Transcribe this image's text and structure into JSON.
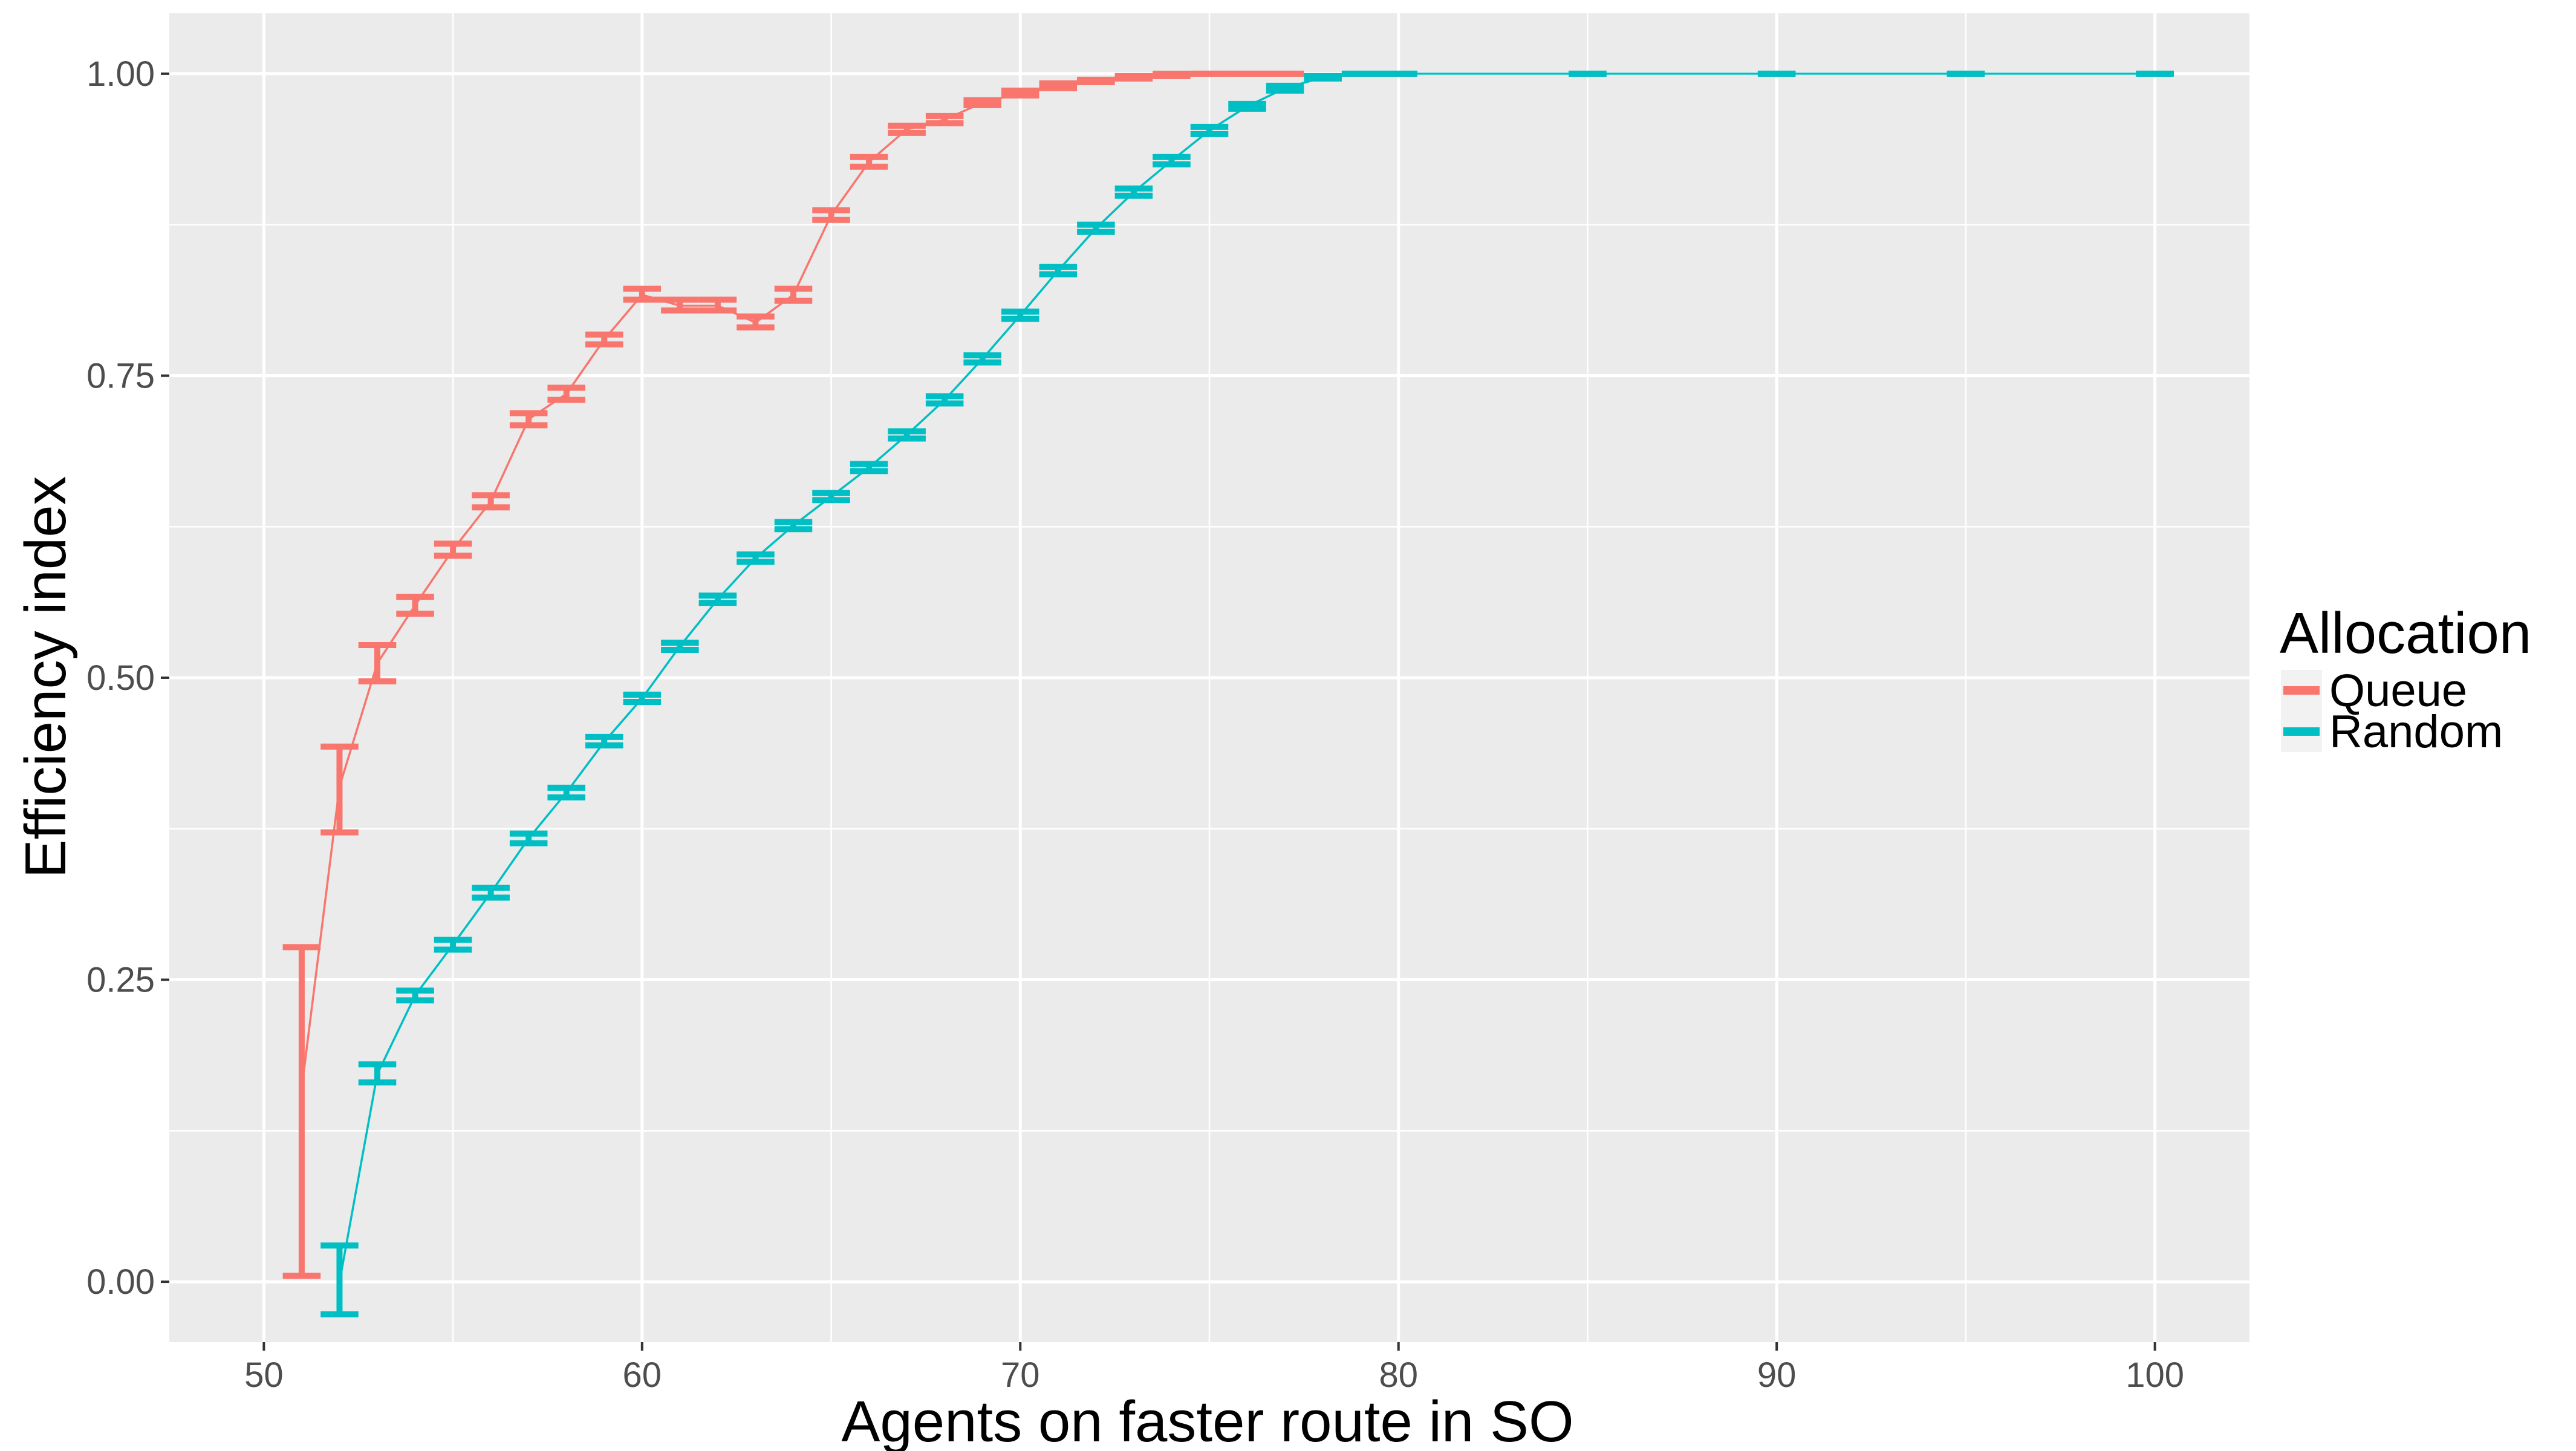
{
  "chart_data": {
    "type": "line",
    "xlabel": "Agents on faster route in SO",
    "ylabel": "Efficiency index",
    "xlim": [
      47.5,
      102.5
    ],
    "ylim": [
      -0.05,
      1.05
    ],
    "x_ticks": [
      50,
      60,
      70,
      80,
      90,
      100
    ],
    "x_tick_labels": [
      "50",
      "60",
      "70",
      "80",
      "90",
      "100"
    ],
    "y_ticks": [
      0,
      0.25,
      0.5,
      0.75,
      1.0
    ],
    "y_tick_labels": [
      "0.00",
      "0.25",
      "0.50",
      "0.75",
      "1.00"
    ],
    "grid": true,
    "legend_position": "right",
    "legend": {
      "title": "Allocation",
      "entries": [
        "Queue",
        "Random"
      ]
    },
    "colors": {
      "Queue": "#F8766D",
      "Random": "#00BFC4",
      "panel": "#EBEBEB",
      "grid": "#FFFFFF"
    },
    "series": [
      {
        "name": "Queue",
        "points": [
          {
            "x": 51,
            "y": 0.16,
            "lo": 0.005,
            "hi": 0.277
          },
          {
            "x": 52,
            "y": 0.41,
            "lo": 0.372,
            "hi": 0.443
          },
          {
            "x": 53,
            "y": 0.512,
            "lo": 0.497,
            "hi": 0.527
          },
          {
            "x": 54,
            "y": 0.56,
            "lo": 0.553,
            "hi": 0.567
          },
          {
            "x": 55,
            "y": 0.606,
            "lo": 0.601,
            "hi": 0.611
          },
          {
            "x": 56,
            "y": 0.646,
            "lo": 0.641,
            "hi": 0.651
          },
          {
            "x": 57,
            "y": 0.714,
            "lo": 0.709,
            "hi": 0.719
          },
          {
            "x": 58,
            "y": 0.735,
            "lo": 0.73,
            "hi": 0.74
          },
          {
            "x": 59,
            "y": 0.78,
            "lo": 0.776,
            "hi": 0.784
          },
          {
            "x": 60,
            "y": 0.817,
            "lo": 0.813,
            "hi": 0.822
          },
          {
            "x": 61,
            "y": 0.808,
            "lo": 0.804,
            "hi": 0.813
          },
          {
            "x": 62,
            "y": 0.808,
            "lo": 0.804,
            "hi": 0.813
          },
          {
            "x": 63,
            "y": 0.794,
            "lo": 0.79,
            "hi": 0.799
          },
          {
            "x": 64,
            "y": 0.817,
            "lo": 0.812,
            "hi": 0.822
          },
          {
            "x": 65,
            "y": 0.883,
            "lo": 0.879,
            "hi": 0.887
          },
          {
            "x": 66,
            "y": 0.927,
            "lo": 0.923,
            "hi": 0.931
          },
          {
            "x": 67,
            "y": 0.954,
            "lo": 0.951,
            "hi": 0.957
          },
          {
            "x": 68,
            "y": 0.962,
            "lo": 0.959,
            "hi": 0.965
          },
          {
            "x": 69,
            "y": 0.976,
            "lo": 0.974,
            "hi": 0.978
          },
          {
            "x": 70,
            "y": 0.984,
            "lo": 0.982,
            "hi": 0.986
          },
          {
            "x": 71,
            "y": 0.99,
            "lo": 0.988,
            "hi": 0.992
          },
          {
            "x": 72,
            "y": 0.994,
            "lo": 0.993,
            "hi": 0.995
          },
          {
            "x": 73,
            "y": 0.997,
            "lo": 0.996,
            "hi": 0.998
          },
          {
            "x": 74,
            "y": 0.999,
            "lo": 0.998,
            "hi": 1.0
          },
          {
            "x": 75,
            "y": 1.0,
            "lo": 1.0,
            "hi": 1.0
          },
          {
            "x": 76,
            "y": 1.0,
            "lo": 1.0,
            "hi": 1.0
          },
          {
            "x": 77,
            "y": 1.0,
            "lo": 1.0,
            "hi": 1.0
          }
        ]
      },
      {
        "name": "Random",
        "points": [
          {
            "x": 52,
            "y": 0.0,
            "lo": -0.027,
            "hi": 0.03
          },
          {
            "x": 53,
            "y": 0.172,
            "lo": 0.165,
            "hi": 0.18
          },
          {
            "x": 54,
            "y": 0.237,
            "lo": 0.233,
            "hi": 0.241
          },
          {
            "x": 55,
            "y": 0.279,
            "lo": 0.275,
            "hi": 0.283
          },
          {
            "x": 56,
            "y": 0.322,
            "lo": 0.318,
            "hi": 0.326
          },
          {
            "x": 57,
            "y": 0.367,
            "lo": 0.363,
            "hi": 0.371
          },
          {
            "x": 58,
            "y": 0.405,
            "lo": 0.401,
            "hi": 0.409
          },
          {
            "x": 59,
            "y": 0.447,
            "lo": 0.444,
            "hi": 0.451
          },
          {
            "x": 60,
            "y": 0.483,
            "lo": 0.48,
            "hi": 0.486
          },
          {
            "x": 61,
            "y": 0.526,
            "lo": 0.523,
            "hi": 0.529
          },
          {
            "x": 62,
            "y": 0.565,
            "lo": 0.562,
            "hi": 0.568
          },
          {
            "x": 63,
            "y": 0.599,
            "lo": 0.596,
            "hi": 0.602
          },
          {
            "x": 64,
            "y": 0.626,
            "lo": 0.623,
            "hi": 0.629
          },
          {
            "x": 65,
            "y": 0.65,
            "lo": 0.647,
            "hi": 0.653
          },
          {
            "x": 66,
            "y": 0.674,
            "lo": 0.671,
            "hi": 0.677
          },
          {
            "x": 67,
            "y": 0.701,
            "lo": 0.698,
            "hi": 0.704
          },
          {
            "x": 68,
            "y": 0.73,
            "lo": 0.727,
            "hi": 0.733
          },
          {
            "x": 69,
            "y": 0.764,
            "lo": 0.761,
            "hi": 0.767
          },
          {
            "x": 70,
            "y": 0.8,
            "lo": 0.797,
            "hi": 0.803
          },
          {
            "x": 71,
            "y": 0.837,
            "lo": 0.834,
            "hi": 0.84
          },
          {
            "x": 72,
            "y": 0.872,
            "lo": 0.869,
            "hi": 0.875
          },
          {
            "x": 73,
            "y": 0.902,
            "lo": 0.899,
            "hi": 0.905
          },
          {
            "x": 74,
            "y": 0.928,
            "lo": 0.925,
            "hi": 0.931
          },
          {
            "x": 75,
            "y": 0.953,
            "lo": 0.95,
            "hi": 0.956
          },
          {
            "x": 76,
            "y": 0.973,
            "lo": 0.971,
            "hi": 0.975
          },
          {
            "x": 77,
            "y": 0.988,
            "lo": 0.986,
            "hi": 0.99
          },
          {
            "x": 78,
            "y": 0.997,
            "lo": 0.996,
            "hi": 0.998
          },
          {
            "x": 79,
            "y": 1.0,
            "lo": 1.0,
            "hi": 1.0
          },
          {
            "x": 80,
            "y": 1.0,
            "lo": 1.0,
            "hi": 1.0
          },
          {
            "x": 85,
            "y": 1.0,
            "lo": 1.0,
            "hi": 1.0
          },
          {
            "x": 90,
            "y": 1.0,
            "lo": 1.0,
            "hi": 1.0
          },
          {
            "x": 95,
            "y": 1.0,
            "lo": 1.0,
            "hi": 1.0
          },
          {
            "x": 100,
            "y": 1.0,
            "lo": 1.0,
            "hi": 1.0
          }
        ]
      }
    ]
  }
}
